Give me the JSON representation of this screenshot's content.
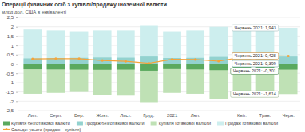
{
  "chart_data": {
    "type": "bar",
    "title": "Операції фізичних осіб з купівлі/продажу іноземної валюти",
    "subtitle": "млрд дол. США в еквіваленті",
    "categories": [
      "Лип.",
      "Серп.",
      "Вер.",
      "Жовт.",
      "Лист.",
      "Груд.",
      "2021",
      "Лют.",
      null,
      "Квіт.",
      "Трав.",
      "Черв."
    ],
    "stacked": false,
    "grid": true,
    "legend": "bottom",
    "ylim": [
      -2.5,
      2.5
    ],
    "yticks": [
      {
        "value": -2.5,
        "label": "-2,5"
      },
      -2,
      {
        "value": -1.5,
        "label": "-1,5"
      },
      -1,
      {
        "value": -0.5,
        "label": "-0,5"
      },
      0,
      {
        "value": 0.5,
        "label": "0,5"
      },
      1,
      {
        "value": 1.5,
        "label": "1,5"
      },
      2,
      {
        "value": 2.5,
        "label": "2,5"
      }
    ],
    "series": [
      {
        "name": "Купівля безготівкової валюти",
        "type": "bar",
        "color": "#5aa95e",
        "values": [
          -0.28,
          -0.29,
          -0.3,
          -0.31,
          -0.3,
          -0.36,
          -0.27,
          -0.29,
          -0.33,
          -0.3,
          -0.31,
          -0.301
        ],
        "value_labels": [
          null,
          null,
          null,
          null,
          null,
          null,
          null,
          null,
          null,
          null,
          null,
          "Червень 2021: -0,301"
        ]
      },
      {
        "name": "Продаж безготівкової валюти",
        "type": "bar",
        "color": "#93d2cf",
        "values": [
          0.3,
          0.32,
          0.33,
          0.35,
          0.34,
          0.4,
          0.32,
          0.33,
          0.38,
          0.37,
          0.4,
          0.399
        ],
        "value_labels": [
          null,
          null,
          null,
          null,
          null,
          null,
          null,
          null,
          null,
          null,
          null,
          "Червень 2021: 0,399"
        ]
      },
      {
        "name": "Купівля готівкової валюти",
        "type": "bar",
        "color": "#bfe1b5",
        "values": [
          -1.6,
          -1.55,
          -1.5,
          -1.65,
          -1.7,
          -2.05,
          -1.55,
          -1.6,
          -1.9,
          -1.55,
          -1.55,
          -1.614
        ],
        "value_labels": [
          null,
          null,
          null,
          null,
          null,
          null,
          null,
          null,
          null,
          null,
          null,
          "Червень 2021: -1,614"
        ]
      },
      {
        "name": "Продаж готівкової валюти",
        "type": "bar",
        "color": "#cdeeee",
        "values": [
          1.85,
          1.8,
          1.75,
          1.8,
          1.8,
          2.05,
          1.75,
          1.8,
          2.0,
          1.85,
          1.9,
          1.943
        ],
        "value_labels": [
          null,
          null,
          null,
          null,
          null,
          null,
          null,
          null,
          null,
          null,
          null,
          "Червень 2021: 1,943"
        ]
      },
      {
        "name": "Сальдо: усього (продаж – купівля)",
        "type": "line",
        "color": "#f5a43a",
        "marker": "circle",
        "values": [
          0.27,
          0.28,
          0.28,
          0.19,
          0.14,
          0.04,
          0.25,
          0.24,
          0.15,
          0.37,
          0.44,
          0.428
        ],
        "value_labels": [
          null,
          null,
          null,
          null,
          null,
          null,
          null,
          null,
          null,
          null,
          null,
          "Червень 2021: 0,428"
        ]
      }
    ]
  }
}
